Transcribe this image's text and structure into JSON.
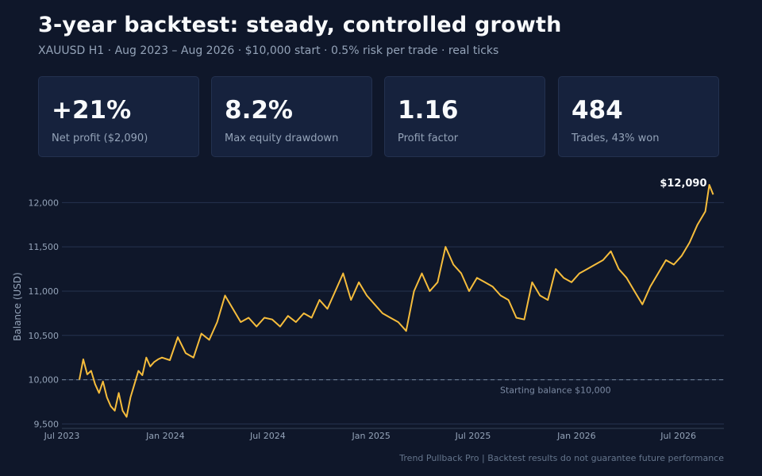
{
  "header": {
    "title": "3-year backtest: steady, controlled growth",
    "subtitle": "XAUUSD H1  ·  Aug 2023 – Aug 2026  ·  $10,000 start  ·  0.5% risk per trade  ·  real ticks"
  },
  "stats": [
    {
      "value": "+21%",
      "label": "Net profit ($2,090)"
    },
    {
      "value": "8.2%",
      "label": "Max equity drawdown"
    },
    {
      "value": "1.16",
      "label": "Profit factor"
    },
    {
      "value": "484",
      "label": "Trades, 43% won"
    }
  ],
  "footer": "Trend Pullback Pro  |  Backtest results do not guarantee future performance",
  "colors": {
    "background": "#0f172a",
    "card": "#16223d",
    "line": "#f6bd3c",
    "grid": "#26334f",
    "baseline": "#64748b"
  },
  "chart_data": {
    "type": "line",
    "ylabel": "Balance (USD)",
    "xlabel": "",
    "ylim": [
      9450,
      12200
    ],
    "xlim": [
      "2023-07-01",
      "2026-09-20"
    ],
    "x_ticks": [
      {
        "date": "2023-07-01",
        "label": "Jul 2023"
      },
      {
        "date": "2024-01-01",
        "label": "Jan 2024"
      },
      {
        "date": "2024-07-01",
        "label": "Jul 2024"
      },
      {
        "date": "2025-01-01",
        "label": "Jan 2025"
      },
      {
        "date": "2025-07-01",
        "label": "Jul 2025"
      },
      {
        "date": "2026-01-01",
        "label": "Jan 2026"
      },
      {
        "date": "2026-07-01",
        "label": "Jul 2026"
      }
    ],
    "y_ticks": [
      9500,
      10000,
      10500,
      11000,
      11500,
      12000
    ],
    "y_tick_labels": [
      "9,500",
      "10,000",
      "10,500",
      "11,000",
      "11,500",
      "12,000"
    ],
    "grid": true,
    "baseline": {
      "value": 10000,
      "label": "Starting balance $10,000"
    },
    "end_label": "$12,090",
    "series": [
      {
        "x": [
          "2023-08-01",
          "2023-08-08",
          "2023-08-15",
          "2023-08-22",
          "2023-08-29",
          "2023-09-05",
          "2023-09-12",
          "2023-09-19",
          "2023-09-26",
          "2023-10-03",
          "2023-10-10",
          "2023-10-17",
          "2023-10-24",
          "2023-10-31",
          "2023-11-07",
          "2023-11-14",
          "2023-11-21",
          "2023-11-28",
          "2023-12-05",
          "2023-12-12",
          "2023-12-19",
          "2023-12-26",
          "2024-01-09",
          "2024-01-23",
          "2024-02-06",
          "2024-02-20",
          "2024-03-05",
          "2024-03-19",
          "2024-04-02",
          "2024-04-16",
          "2024-04-30",
          "2024-05-14",
          "2024-05-28",
          "2024-06-11",
          "2024-06-25",
          "2024-07-09",
          "2024-07-23",
          "2024-08-06",
          "2024-08-20",
          "2024-09-03",
          "2024-09-17",
          "2024-10-01",
          "2024-10-15",
          "2024-10-29",
          "2024-11-12",
          "2024-11-26",
          "2024-12-10",
          "2024-12-24",
          "2025-01-07",
          "2025-01-21",
          "2025-02-04",
          "2025-02-18",
          "2025-03-04",
          "2025-03-18",
          "2025-04-01",
          "2025-04-15",
          "2025-04-29",
          "2025-05-13",
          "2025-05-27",
          "2025-06-10",
          "2025-06-24",
          "2025-07-08",
          "2025-07-22",
          "2025-08-05",
          "2025-08-19",
          "2025-09-02",
          "2025-09-16",
          "2025-09-30",
          "2025-10-14",
          "2025-10-28",
          "2025-11-11",
          "2025-11-25",
          "2025-12-09",
          "2025-12-23",
          "2026-01-06",
          "2026-01-20",
          "2026-02-03",
          "2026-02-17",
          "2026-03-03",
          "2026-03-17",
          "2026-03-31",
          "2026-04-14",
          "2026-04-28",
          "2026-05-12",
          "2026-05-26",
          "2026-06-09",
          "2026-06-23",
          "2026-07-07",
          "2026-07-21",
          "2026-08-04",
          "2026-08-18",
          "2026-08-25",
          "2026-09-01"
        ],
        "y": [
          10000,
          10230,
          10060,
          10100,
          9950,
          9850,
          9980,
          9800,
          9700,
          9650,
          9850,
          9650,
          9580,
          9800,
          9950,
          10100,
          10050,
          10250,
          10150,
          10200,
          10230,
          10250,
          10220,
          10480,
          10300,
          10250,
          10520,
          10450,
          10650,
          10950,
          10800,
          10650,
          10700,
          10600,
          10700,
          10680,
          10600,
          10720,
          10650,
          10750,
          10700,
          10900,
          10800,
          11000,
          11200,
          10900,
          11100,
          10950,
          10850,
          10750,
          10700,
          10650,
          10550,
          11000,
          11200,
          11000,
          11100,
          11500,
          11300,
          11200,
          11000,
          11150,
          11100,
          11050,
          10950,
          10900,
          10700,
          10680,
          11100,
          10950,
          10900,
          11250,
          11150,
          11100,
          11200,
          11250,
          11300,
          11350,
          11450,
          11250,
          11150,
          11000,
          10850,
          11050,
          11200,
          11350,
          11300,
          11400,
          11550,
          11750,
          11900,
          12200,
          12090
        ]
      }
    ]
  }
}
